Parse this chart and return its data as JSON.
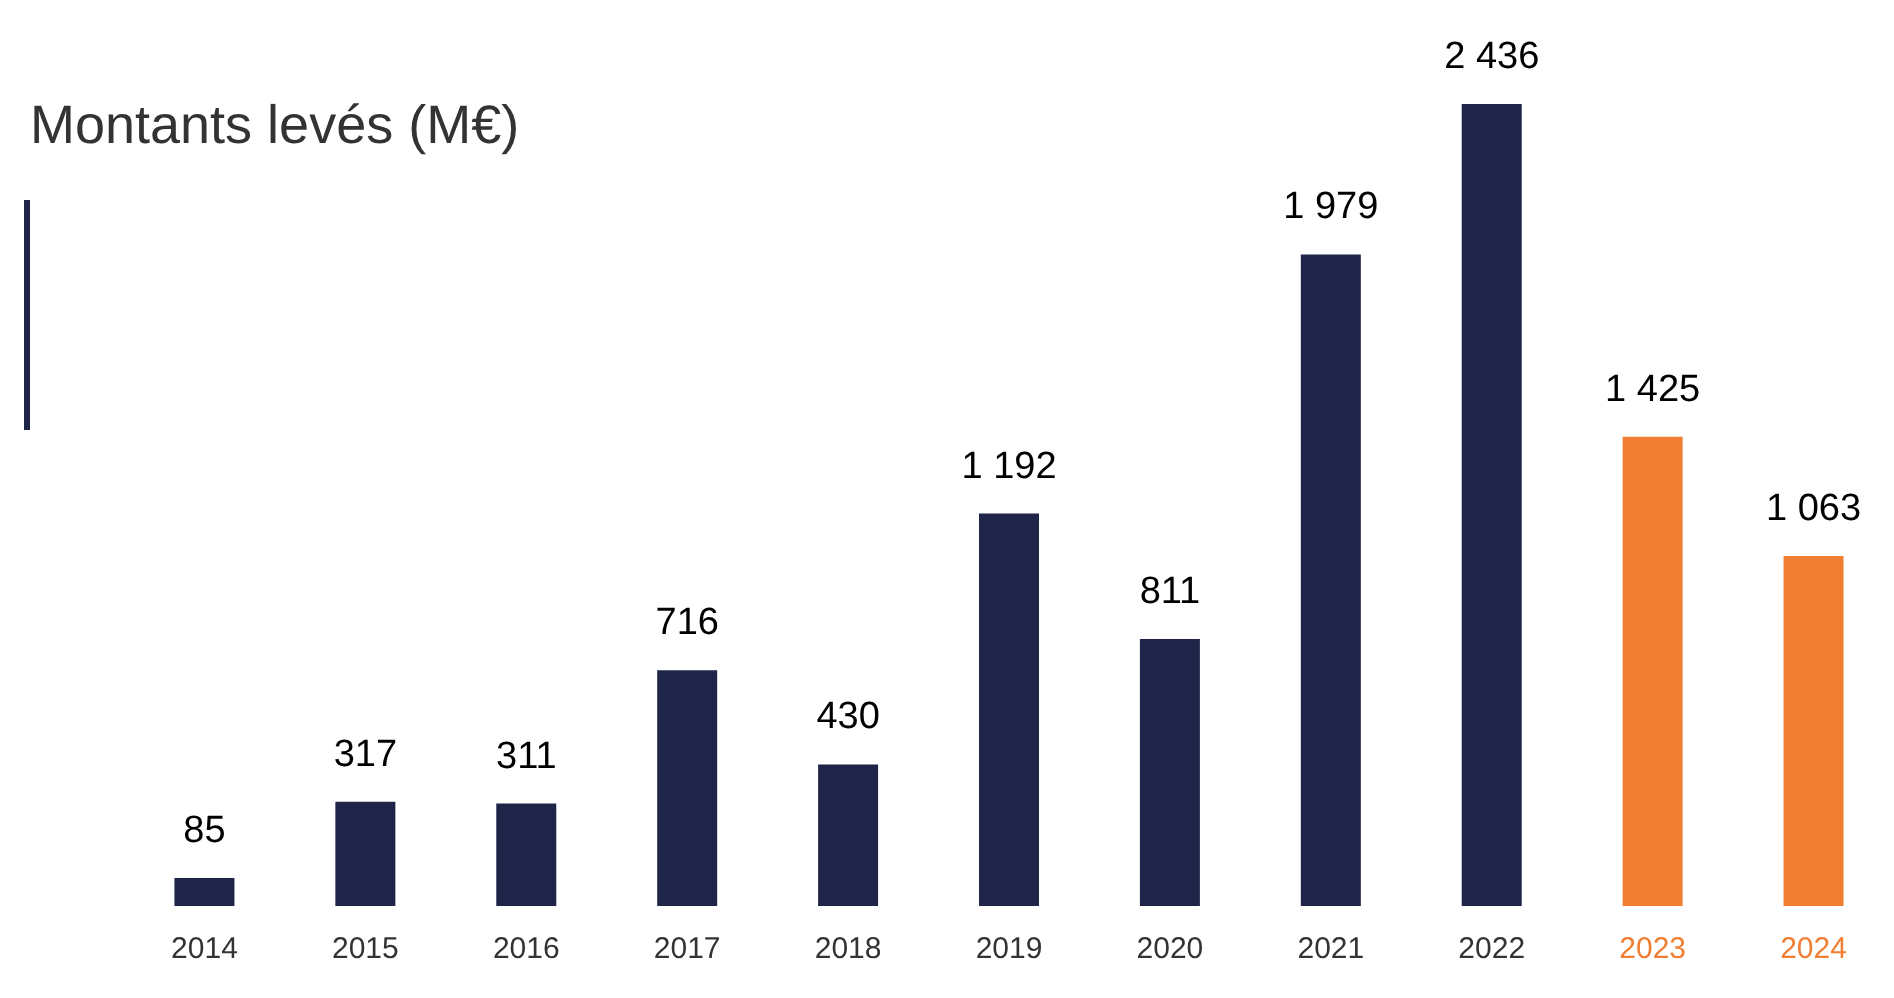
{
  "chart_data": {
    "type": "bar",
    "title": "Montants levés (M€)",
    "categories": [
      "2014",
      "2015",
      "2016",
      "2017",
      "2018",
      "2019",
      "2020",
      "2021",
      "2022",
      "2023",
      "2024"
    ],
    "values": [
      85,
      317,
      311,
      716,
      430,
      1192,
      811,
      1979,
      2436,
      1425,
      1063
    ],
    "value_labels": [
      "85",
      "317",
      "311",
      "716",
      "430",
      "1 192",
      "811",
      "1 979",
      "2 436",
      "1 425",
      "1 063"
    ],
    "colors": [
      "#1f2548",
      "#1f2548",
      "#1f2548",
      "#1f2548",
      "#1f2548",
      "#1f2548",
      "#1f2548",
      "#1f2548",
      "#1f2548",
      "#f07f33",
      "#f07f33"
    ],
    "orientation": "vertical"
  }
}
